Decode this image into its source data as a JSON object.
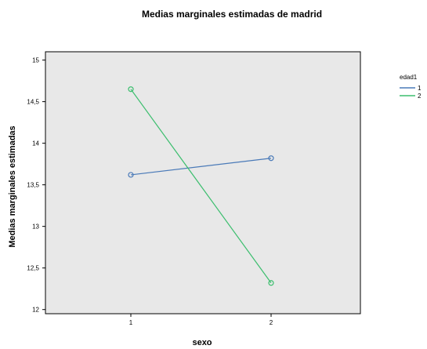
{
  "chart_data": {
    "type": "line",
    "title": "Medias marginales estimadas de madrid",
    "xlabel": "sexo",
    "ylabel": "Medias marginales estimadas",
    "categories": [
      "1",
      "2"
    ],
    "ylim": [
      11.95,
      15.1
    ],
    "yticks": [
      "12",
      "12,5",
      "13",
      "13,5",
      "14",
      "14,5",
      "15"
    ],
    "ytick_values": [
      12,
      12.5,
      13,
      13.5,
      14,
      14.5,
      15
    ],
    "legend_title": "edad1",
    "legend_position": "right",
    "grid": false,
    "background": "#e8e8e8",
    "series": [
      {
        "name": "1",
        "color": "#4a7ab8",
        "values": [
          13.62,
          13.82
        ]
      },
      {
        "name": "2",
        "color": "#3cbe6e",
        "values": [
          14.65,
          12.32
        ]
      }
    ]
  }
}
